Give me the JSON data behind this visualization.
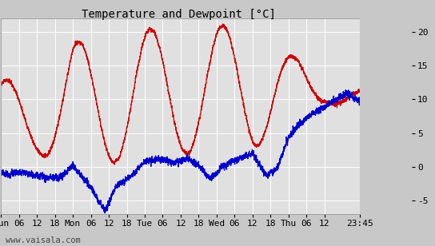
{
  "title": "Temperature and Dewpoint [°C]",
  "ylabel_right_ticks": [
    -5,
    0,
    5,
    10,
    15,
    20
  ],
  "ylim": [
    -7,
    22
  ],
  "bg_color": "#c8c8c8",
  "plot_bg_color": "#e0e0e0",
  "grid_color": "#ffffff",
  "temp_color": "#cc0000",
  "dew_color": "#0000cc",
  "watermark": "www.vaisala.com",
  "xtick_labels": [
    "Sun",
    "06",
    "12",
    "18",
    "Mon",
    "06",
    "12",
    "18",
    "Tue",
    "06",
    "12",
    "18",
    "Wed",
    "06",
    "12",
    "18",
    "Thu",
    "06",
    "12",
    "23:45"
  ],
  "title_fontsize": 10,
  "tick_fontsize": 8,
  "watermark_fontsize": 7.5,
  "line_width": 0.9,
  "noise_seed": 42
}
